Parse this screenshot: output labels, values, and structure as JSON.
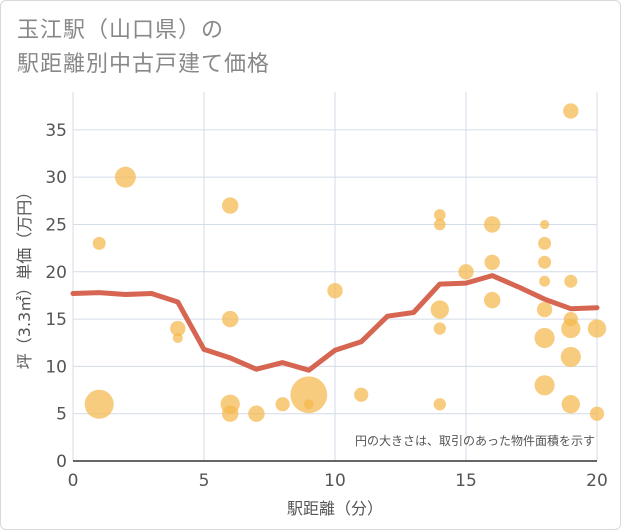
{
  "title_line1": "玉江駅（山口県）の",
  "title_line2": "駅距離別中古戸建て価格",
  "chart_data": {
    "type": "scatter",
    "title": "玉江駅（山口県）の駅距離別中古戸建て価格",
    "xlabel": "駅距離（分）",
    "ylabel": "坪（3.3㎡）単価（万円）",
    "xlim": [
      0,
      20
    ],
    "ylim": [
      0,
      39
    ],
    "xticks": [
      0,
      5,
      10,
      15,
      20
    ],
    "yticks": [
      0,
      5,
      10,
      15,
      20,
      25,
      30,
      35
    ],
    "grid": true,
    "note": "円の大きさは、取引のあった物件面積を示す",
    "colors": {
      "bubble": "#f5b94d",
      "line": "#d2553e",
      "grid": "#d4dce8"
    },
    "points": [
      {
        "x": 1,
        "y": 6,
        "size": 5
      },
      {
        "x": 1,
        "y": 23,
        "size": 1
      },
      {
        "x": 2,
        "y": 30,
        "size": 2.6
      },
      {
        "x": 4,
        "y": 14,
        "size": 1.4
      },
      {
        "x": 4,
        "y": 13,
        "size": 0.6
      },
      {
        "x": 6,
        "y": 27,
        "size": 1.6
      },
      {
        "x": 6,
        "y": 15,
        "size": 1.6
      },
      {
        "x": 6,
        "y": 6,
        "size": 2.2
      },
      {
        "x": 6,
        "y": 5,
        "size": 1.6
      },
      {
        "x": 7,
        "y": 5,
        "size": 1.6
      },
      {
        "x": 8,
        "y": 6,
        "size": 1.2
      },
      {
        "x": 9,
        "y": 7,
        "size": 8
      },
      {
        "x": 9,
        "y": 6,
        "size": 0.6
      },
      {
        "x": 10,
        "y": 18,
        "size": 1.4
      },
      {
        "x": 11,
        "y": 7,
        "size": 1.2
      },
      {
        "x": 14,
        "y": 26,
        "size": 0.8
      },
      {
        "x": 14,
        "y": 25,
        "size": 0.8
      },
      {
        "x": 14,
        "y": 16,
        "size": 2
      },
      {
        "x": 14,
        "y": 14,
        "size": 0.9
      },
      {
        "x": 14,
        "y": 6,
        "size": 0.9
      },
      {
        "x": 15,
        "y": 20,
        "size": 1.4
      },
      {
        "x": 16,
        "y": 25,
        "size": 1.6
      },
      {
        "x": 16,
        "y": 21,
        "size": 1.4
      },
      {
        "x": 16,
        "y": 17,
        "size": 1.6
      },
      {
        "x": 18,
        "y": 25,
        "size": 0.5
      },
      {
        "x": 18,
        "y": 23,
        "size": 1
      },
      {
        "x": 18,
        "y": 21,
        "size": 1
      },
      {
        "x": 18,
        "y": 19,
        "size": 0.7
      },
      {
        "x": 18,
        "y": 16,
        "size": 1.4
      },
      {
        "x": 18,
        "y": 13,
        "size": 2.4
      },
      {
        "x": 18,
        "y": 8,
        "size": 2.4
      },
      {
        "x": 19,
        "y": 37,
        "size": 1.4
      },
      {
        "x": 19,
        "y": 19,
        "size": 1
      },
      {
        "x": 19,
        "y": 15,
        "size": 1.2
      },
      {
        "x": 19,
        "y": 14,
        "size": 2.2
      },
      {
        "x": 19,
        "y": 11,
        "size": 2.4
      },
      {
        "x": 19,
        "y": 6,
        "size": 2
      },
      {
        "x": 20,
        "y": 14,
        "size": 2
      },
      {
        "x": 20,
        "y": 5,
        "size": 1.2
      }
    ],
    "trend": {
      "x": [
        0,
        1,
        2,
        3,
        4,
        5,
        6,
        7,
        8,
        9,
        10,
        11,
        12,
        13,
        14,
        15,
        16,
        17,
        18,
        19,
        20
      ],
      "y": [
        17.7,
        17.8,
        17.6,
        17.7,
        16.8,
        11.8,
        10.9,
        9.7,
        10.4,
        9.6,
        11.7,
        12.6,
        15.3,
        15.7,
        18.7,
        18.8,
        19.6,
        18.4,
        17.1,
        16.1,
        16.2
      ]
    }
  }
}
